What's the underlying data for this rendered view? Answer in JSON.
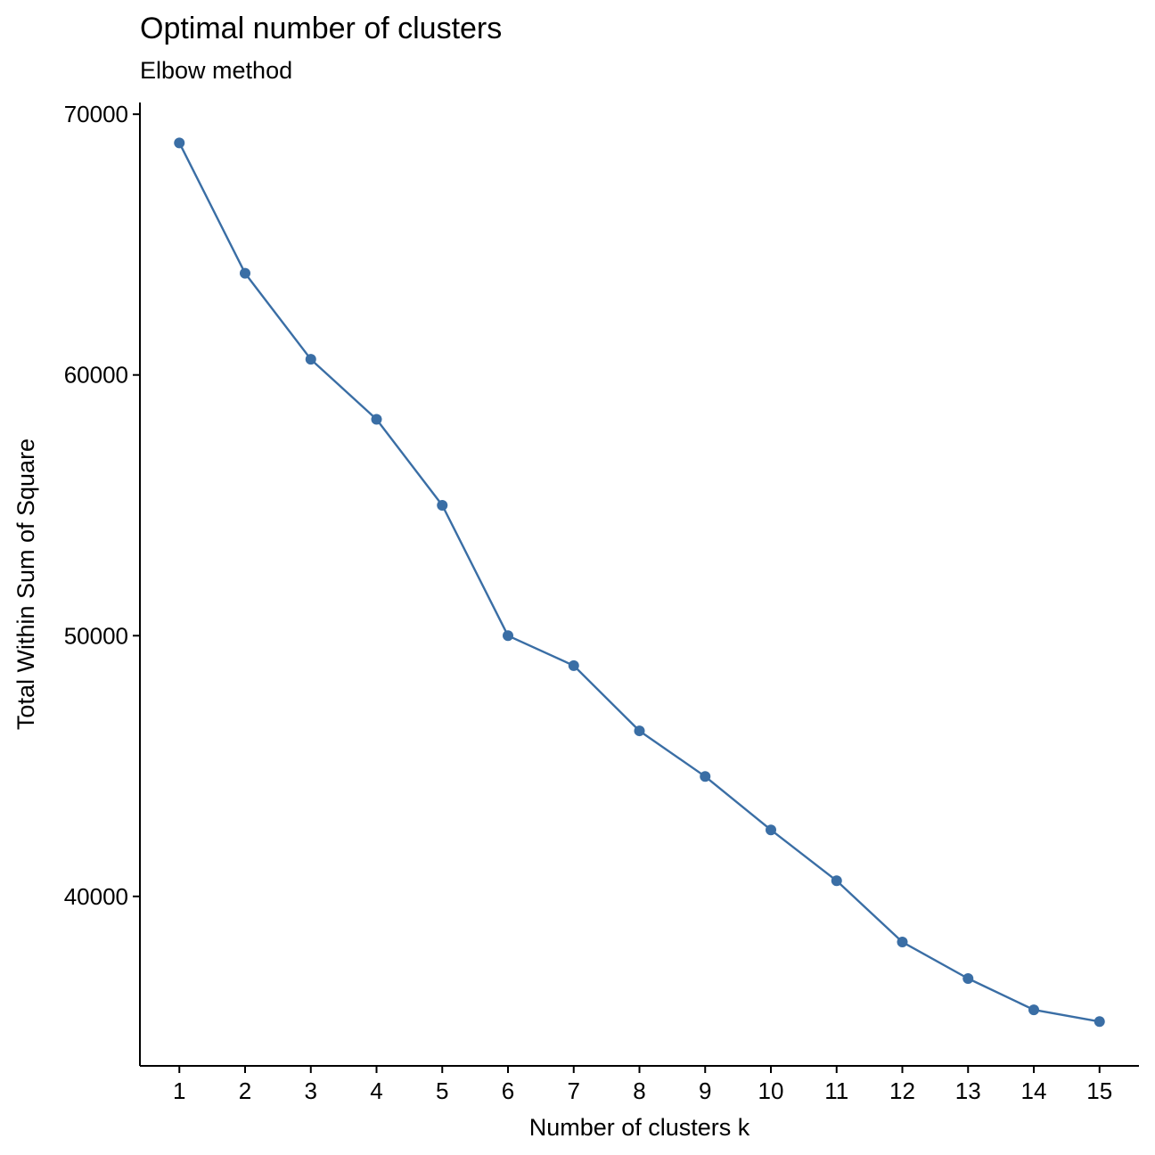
{
  "chart_data": {
    "type": "line",
    "title": "Optimal number of clusters",
    "subtitle": "Elbow method",
    "xlabel": "Number of clusters k",
    "ylabel": "Total Within Sum of Square",
    "x": [
      1,
      2,
      3,
      4,
      5,
      6,
      7,
      8,
      9,
      10,
      11,
      12,
      13,
      14,
      15
    ],
    "values": [
      68900,
      63900,
      60600,
      58300,
      55000,
      50000,
      48850,
      46350,
      44600,
      42550,
      40600,
      38250,
      36850,
      35650,
      35200
    ],
    "x_ticks": [
      "1",
      "2",
      "3",
      "4",
      "5",
      "6",
      "7",
      "8",
      "9",
      "10",
      "11",
      "12",
      "13",
      "14",
      "15"
    ],
    "y_ticks": [
      "40000",
      "50000",
      "60000",
      "70000"
    ],
    "xlim": [
      0.4,
      15.6
    ],
    "ylim": [
      33500,
      70450
    ],
    "grid": false,
    "legend": "none",
    "line_color": "#3A6EA5",
    "point_color": "#3A6EA5"
  }
}
